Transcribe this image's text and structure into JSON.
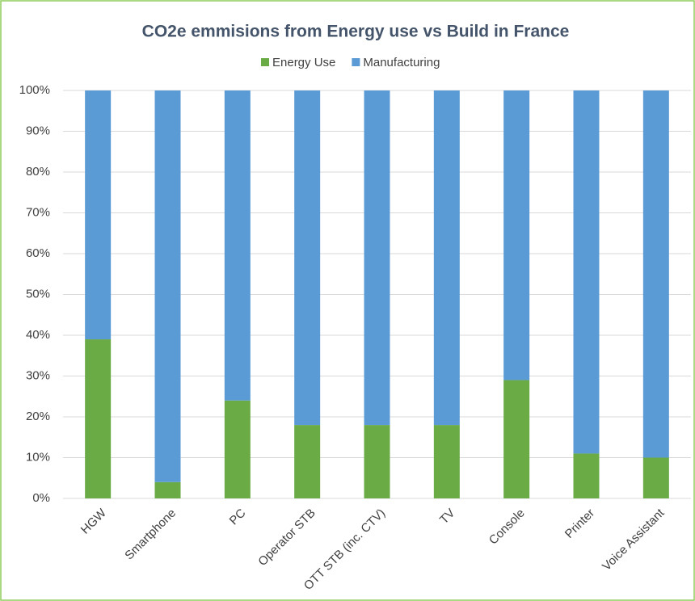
{
  "chart_data": {
    "type": "stacked_bar_percent",
    "title": "CO2e emmisions from Energy use vs Build in France",
    "categories": [
      "HGW",
      "Smartphone",
      "PC",
      "Operator STB",
      "OTT STB (inc. CTV)",
      "TV",
      "Console",
      "Printer",
      "Voice Assistant"
    ],
    "series": [
      {
        "name": "Energy Use",
        "color": "#6aab45",
        "values": [
          39,
          4,
          24,
          18,
          18,
          18,
          29,
          11,
          10
        ]
      },
      {
        "name": "Manufacturing",
        "color": "#5b9bd5",
        "values": [
          61,
          96,
          76,
          82,
          82,
          82,
          71,
          89,
          90
        ]
      }
    ],
    "ylim": [
      0,
      100
    ],
    "yticks": [
      {
        "value": 0,
        "label": "0%"
      },
      {
        "value": 10,
        "label": "10%"
      },
      {
        "value": 20,
        "label": "20%"
      },
      {
        "value": 30,
        "label": "30%"
      },
      {
        "value": 40,
        "label": "40%"
      },
      {
        "value": 50,
        "label": "50%"
      },
      {
        "value": 60,
        "label": "60%"
      },
      {
        "value": 70,
        "label": "70%"
      },
      {
        "value": 80,
        "label": "80%"
      },
      {
        "value": 90,
        "label": "90%"
      },
      {
        "value": 100,
        "label": "100%"
      }
    ],
    "grid": true,
    "legend": "top"
  }
}
